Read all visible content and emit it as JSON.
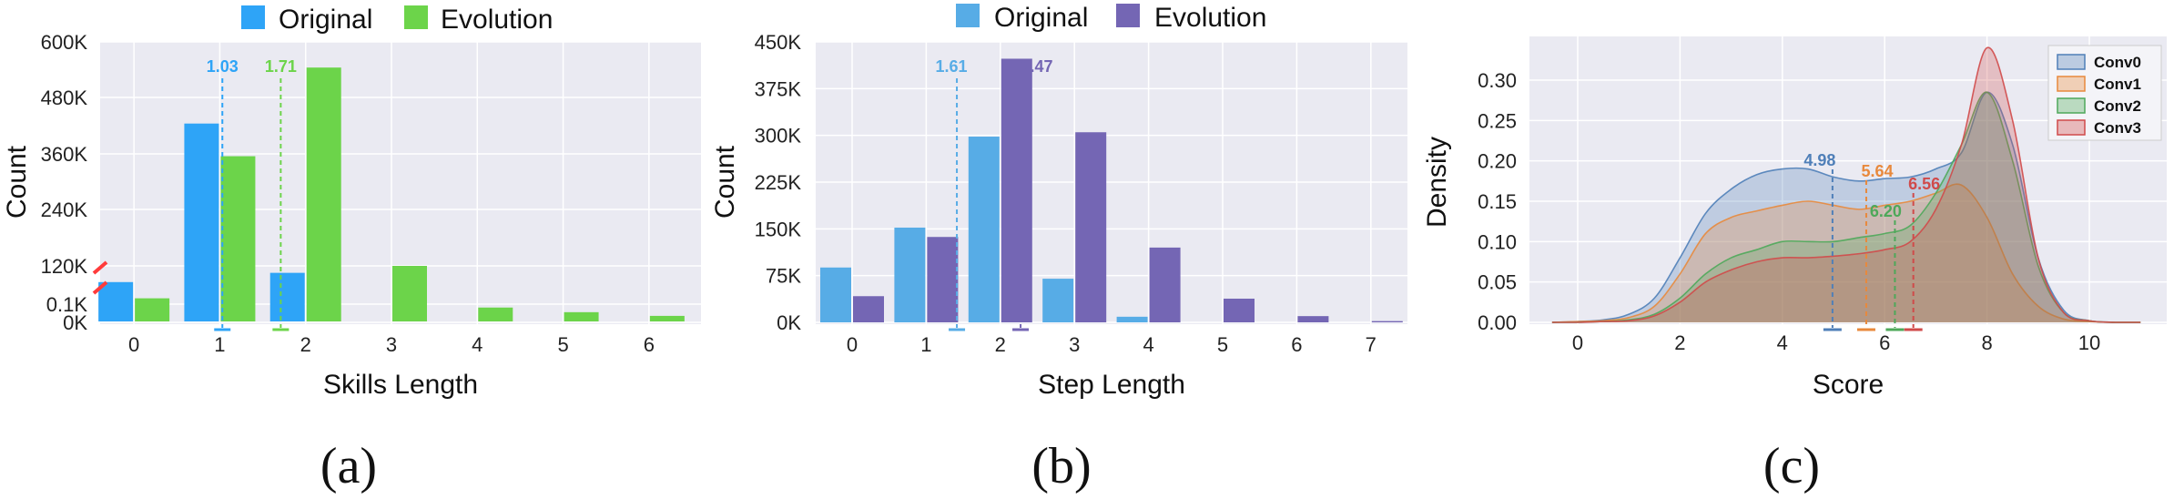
{
  "colors": {
    "bg": "#eaeaf2",
    "grid": "#ffffff",
    "a_original": "#2ea4f7",
    "a_evolution": "#6cd44a",
    "b_original": "#57ace6",
    "b_evolution": "#7466b4",
    "conv0": "#4f7fb8",
    "conv1": "#e8893c",
    "conv2": "#4ea85a",
    "conv3": "#d04a4a"
  },
  "charts": [
    {
      "id": "a",
      "caption": "(a)",
      "xlabel": "Skills Length",
      "ylabel": "Count",
      "legend": [
        "Original",
        "Evolution"
      ],
      "categories": [
        "0",
        "1",
        "2",
        "3",
        "4",
        "5",
        "6"
      ],
      "yticks": [
        "0K",
        "0.1K",
        "120K",
        "240K",
        "360K",
        "480K",
        "600K"
      ],
      "mean_labels": [
        "1.03",
        "1.71"
      ]
    },
    {
      "id": "b",
      "caption": "(b)",
      "xlabel": "Step Length",
      "ylabel": "Count",
      "legend": [
        "Original",
        "Evolution"
      ],
      "categories": [
        "0",
        "1",
        "2",
        "3",
        "4",
        "5",
        "6",
        "7"
      ],
      "yticks": [
        "0K",
        "75K",
        "150K",
        "225K",
        "300K",
        "375K",
        "450K"
      ],
      "mean_labels": [
        "1.61",
        "2.47"
      ]
    },
    {
      "id": "c",
      "caption": "(c)",
      "xlabel": "Score",
      "ylabel": "Density",
      "legend": [
        "Conv0",
        "Conv1",
        "Conv2",
        "Conv3"
      ],
      "xticks": [
        "0",
        "2",
        "4",
        "6",
        "8",
        "10"
      ],
      "yticks": [
        "0.00",
        "0.05",
        "0.10",
        "0.15",
        "0.20",
        "0.25",
        "0.30"
      ],
      "mean_labels": [
        "4.98",
        "5.64",
        "6.20",
        "6.56"
      ]
    }
  ],
  "chart_data": [
    {
      "type": "bar",
      "y_axis_break": true,
      "ylim": [
        0,
        600000
      ],
      "categories": [
        0,
        1,
        2,
        3,
        4,
        5,
        6
      ],
      "series": [
        {
          "name": "Original",
          "values": [
            85000,
            425000,
            105000,
            0,
            0,
            0,
            0
          ]
        },
        {
          "name": "Evolution",
          "values": [
            50000,
            355000,
            545000,
            120000,
            30000,
            20000,
            12000
          ]
        }
      ],
      "means": [
        1.03,
        1.71
      ]
    },
    {
      "type": "bar",
      "ylim": [
        0,
        450000
      ],
      "categories": [
        0,
        1,
        2,
        3,
        4,
        5,
        6,
        7
      ],
      "series": [
        {
          "name": "Original",
          "values": [
            88000,
            152000,
            298000,
            70000,
            9000,
            0,
            0,
            0
          ]
        },
        {
          "name": "Evolution",
          "values": [
            42000,
            137000,
            423000,
            305000,
            120000,
            38000,
            10000,
            2000
          ]
        }
      ],
      "means": [
        1.61,
        2.47
      ]
    },
    {
      "type": "area",
      "ylim": [
        0,
        0.34
      ],
      "xlim": [
        -0.8,
        11.0
      ],
      "x": [
        -0.5,
        0,
        0.5,
        1,
        1.5,
        2,
        2.5,
        3,
        3.5,
        4,
        4.5,
        5,
        5.5,
        6,
        6.5,
        7,
        7.5,
        8,
        8.5,
        9,
        9.5,
        10,
        10.5,
        11
      ],
      "series": [
        {
          "name": "Conv0",
          "values": [
            0,
            0.001,
            0.003,
            0.01,
            0.03,
            0.08,
            0.135,
            0.165,
            0.183,
            0.19,
            0.19,
            0.18,
            0.175,
            0.178,
            0.18,
            0.19,
            0.21,
            0.285,
            0.22,
            0.08,
            0.015,
            0.002,
            0,
            0
          ]
        },
        {
          "name": "Conv1",
          "values": [
            0,
            0.001,
            0.002,
            0.006,
            0.02,
            0.06,
            0.11,
            0.13,
            0.138,
            0.145,
            0.15,
            0.145,
            0.14,
            0.145,
            0.15,
            0.16,
            0.17,
            0.13,
            0.06,
            0.02,
            0.004,
            0.001,
            0,
            0
          ]
        },
        {
          "name": "Conv2",
          "values": [
            0,
            0,
            0.001,
            0.003,
            0.01,
            0.03,
            0.06,
            0.08,
            0.09,
            0.1,
            0.1,
            0.1,
            0.105,
            0.11,
            0.12,
            0.16,
            0.22,
            0.285,
            0.2,
            0.07,
            0.012,
            0.002,
            0,
            0
          ]
        },
        {
          "name": "Conv3",
          "values": [
            0,
            0,
            0.001,
            0.002,
            0.008,
            0.025,
            0.05,
            0.065,
            0.075,
            0.08,
            0.08,
            0.082,
            0.085,
            0.09,
            0.1,
            0.14,
            0.22,
            0.34,
            0.25,
            0.08,
            0.012,
            0.002,
            0,
            0
          ]
        }
      ],
      "means": [
        4.98,
        5.64,
        6.2,
        6.56
      ]
    }
  ]
}
